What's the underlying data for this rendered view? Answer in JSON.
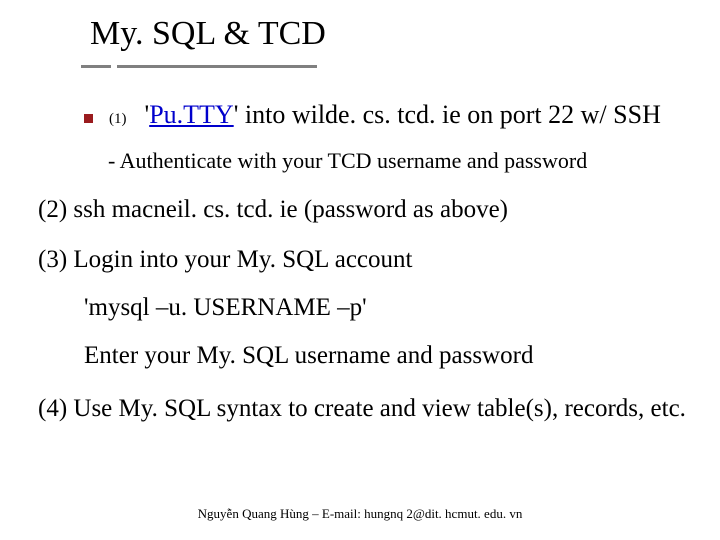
{
  "title": "My. SQL & TCD",
  "step1": {
    "num": "(1)",
    "pre_quote": "'",
    "link_text": "Pu.TTY",
    "post_link": "' into wilde. cs. tcd. ie on port 22 w/ SSH",
    "sub": "- Authenticate with your TCD username and password"
  },
  "step2": "(2) ssh macneil. cs. tcd. ie (password as above)",
  "step3": {
    "line": "(3) Login into your My. SQL account",
    "cmd": "'mysql –u. USERNAME –p'",
    "note": "Enter your My. SQL username and password"
  },
  "step4": "(4) Use My. SQL syntax to create and view table(s), records,  etc.",
  "footer": "Nguyễn Quang Hùng – E-mail: hungnq 2@dit. hcmut. edu. vn",
  "colors": {
    "bullet": "#9a1b1e",
    "link": "#0000cc",
    "underline": "#808080",
    "text": "#000000",
    "background": "#ffffff"
  },
  "fonts": {
    "title_size": 34,
    "body_size": 25,
    "sub_size": 22,
    "num_size": 15,
    "footer_size": 13,
    "family": "Times New Roman"
  }
}
